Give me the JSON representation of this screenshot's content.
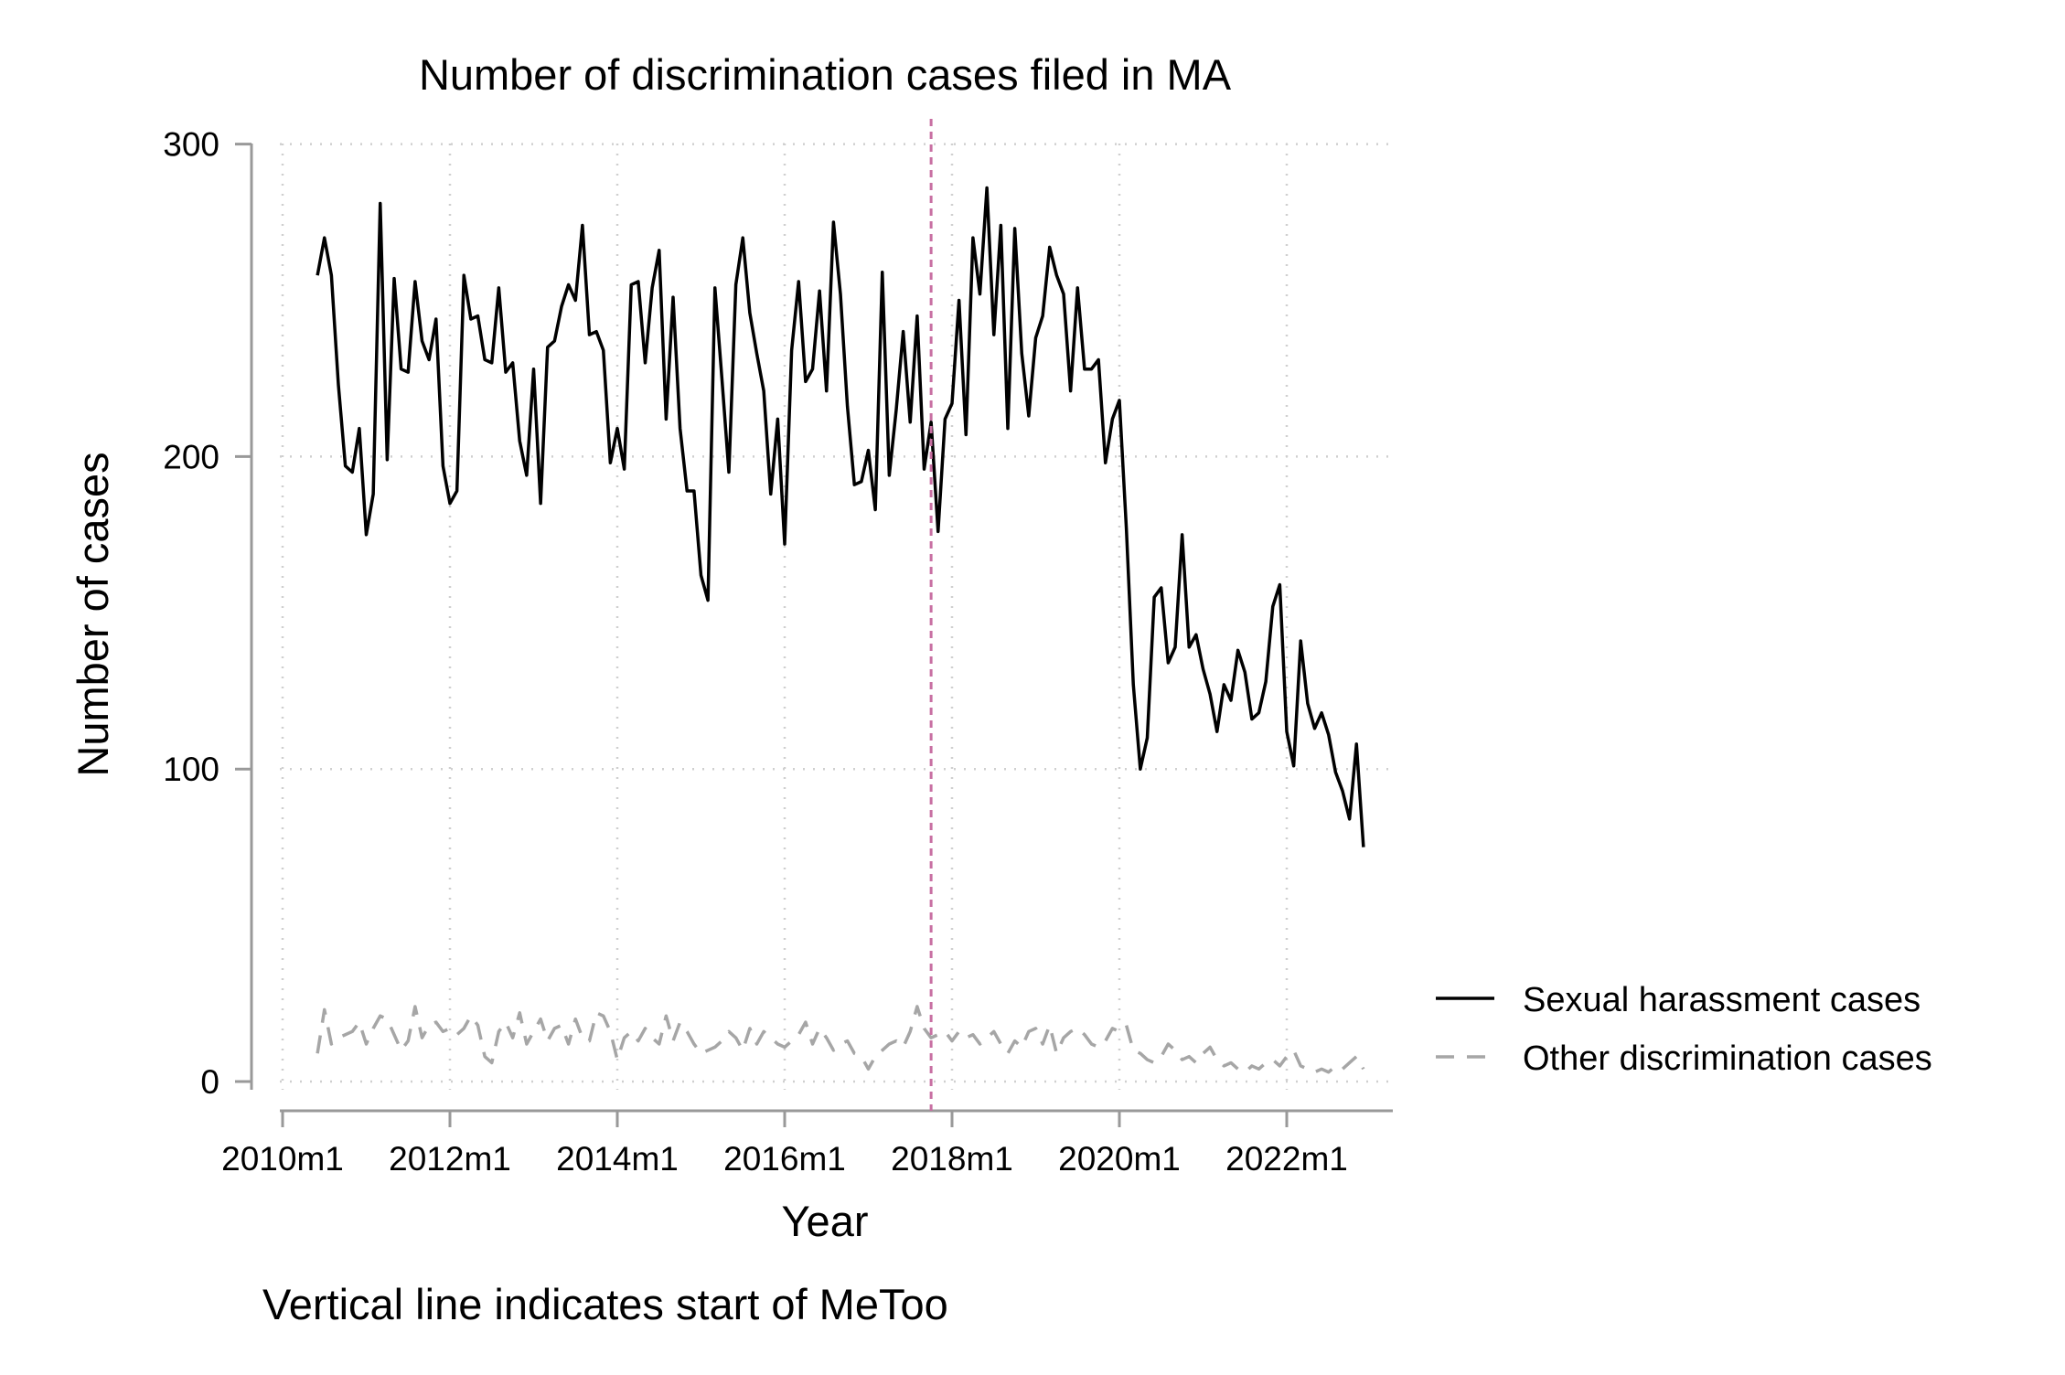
{
  "chart_data": {
    "type": "line",
    "title": "Number of discrimination cases filed in MA",
    "xlabel": "Year",
    "ylabel": "Number of cases",
    "note": "Vertical line indicates start of MeToo",
    "x_unit": "month",
    "x_start": "2010m6",
    "xlim": [
      "2010m1",
      "2023m4"
    ],
    "ylim": [
      -10,
      300
    ],
    "x_ticks": [
      "2010m1",
      "2012m1",
      "2014m1",
      "2016m1",
      "2018m1",
      "2020m1",
      "2022m1"
    ],
    "y_ticks": [
      0,
      100,
      200,
      300
    ],
    "grid": true,
    "legend_position": "right",
    "vline": {
      "x": "2017m10",
      "color": "#c86fa2"
    },
    "series": [
      {
        "name": "Sexual harassment cases",
        "color": "#000000",
        "dash": "solid",
        "values": [
          258,
          270,
          258,
          223,
          197,
          195,
          209,
          175,
          188,
          281,
          199,
          257,
          228,
          227,
          256,
          237,
          231,
          244,
          197,
          185,
          189,
          258,
          244,
          245,
          231,
          230,
          254,
          227,
          230,
          205,
          194,
          228,
          185,
          235,
          237,
          248,
          255,
          250,
          274,
          239,
          240,
          234,
          198,
          209,
          196,
          255,
          256,
          230,
          254,
          266,
          212,
          251,
          209,
          189,
          189,
          162,
          154,
          254,
          225,
          195,
          255,
          270,
          246,
          233,
          221,
          188,
          212,
          172,
          234,
          256,
          224,
          228,
          253,
          221,
          275,
          252,
          216,
          191,
          192,
          202,
          183,
          259,
          194,
          215,
          240,
          211,
          245,
          196,
          211,
          176,
          212,
          217,
          250,
          207,
          270,
          252,
          286,
          239,
          274,
          209,
          273,
          233,
          213,
          238,
          245,
          267,
          258,
          252,
          221,
          254,
          228,
          228,
          231,
          198,
          212,
          218,
          177,
          127,
          100,
          110,
          155,
          158,
          134,
          139,
          175,
          139,
          143,
          132,
          124,
          112,
          127,
          122,
          138,
          131,
          116,
          118,
          128,
          152,
          159,
          112,
          101,
          141,
          121,
          113,
          118,
          111,
          99,
          93,
          84,
          108,
          75
        ]
      },
      {
        "name": "Other discrimination cases",
        "color": "#a6a6a6",
        "dash": "dashed",
        "values": [
          9,
          23,
          12,
          14,
          15,
          16,
          19,
          12,
          17,
          21,
          20,
          15,
          10,
          13,
          24,
          14,
          18,
          19,
          16,
          17,
          15,
          17,
          21,
          18,
          8,
          6,
          16,
          19,
          14,
          22,
          12,
          16,
          20,
          13,
          17,
          18,
          12,
          20,
          14,
          13,
          22,
          21,
          16,
          7,
          14,
          16,
          13,
          17,
          14,
          12,
          21,
          13,
          19,
          16,
          12,
          9,
          10,
          11,
          13,
          16,
          14,
          10,
          17,
          12,
          16,
          14,
          12,
          11,
          13,
          15,
          19,
          12,
          17,
          14,
          10,
          12,
          13,
          9,
          8,
          4,
          8,
          10,
          12,
          13,
          11,
          16,
          24,
          17,
          14,
          15,
          16,
          13,
          16,
          14,
          15,
          12,
          14,
          16,
          12,
          9,
          13,
          11,
          16,
          17,
          12,
          18,
          9,
          14,
          16,
          17,
          15,
          12,
          11,
          13,
          17,
          16,
          18,
          10,
          9,
          7,
          6,
          8,
          12,
          10,
          7,
          8,
          6,
          9,
          11,
          7,
          5,
          6,
          4,
          3,
          5,
          4,
          6,
          7,
          5,
          8,
          10,
          5,
          4,
          3,
          4,
          3,
          5,
          4,
          6,
          8,
          4
        ]
      }
    ]
  }
}
